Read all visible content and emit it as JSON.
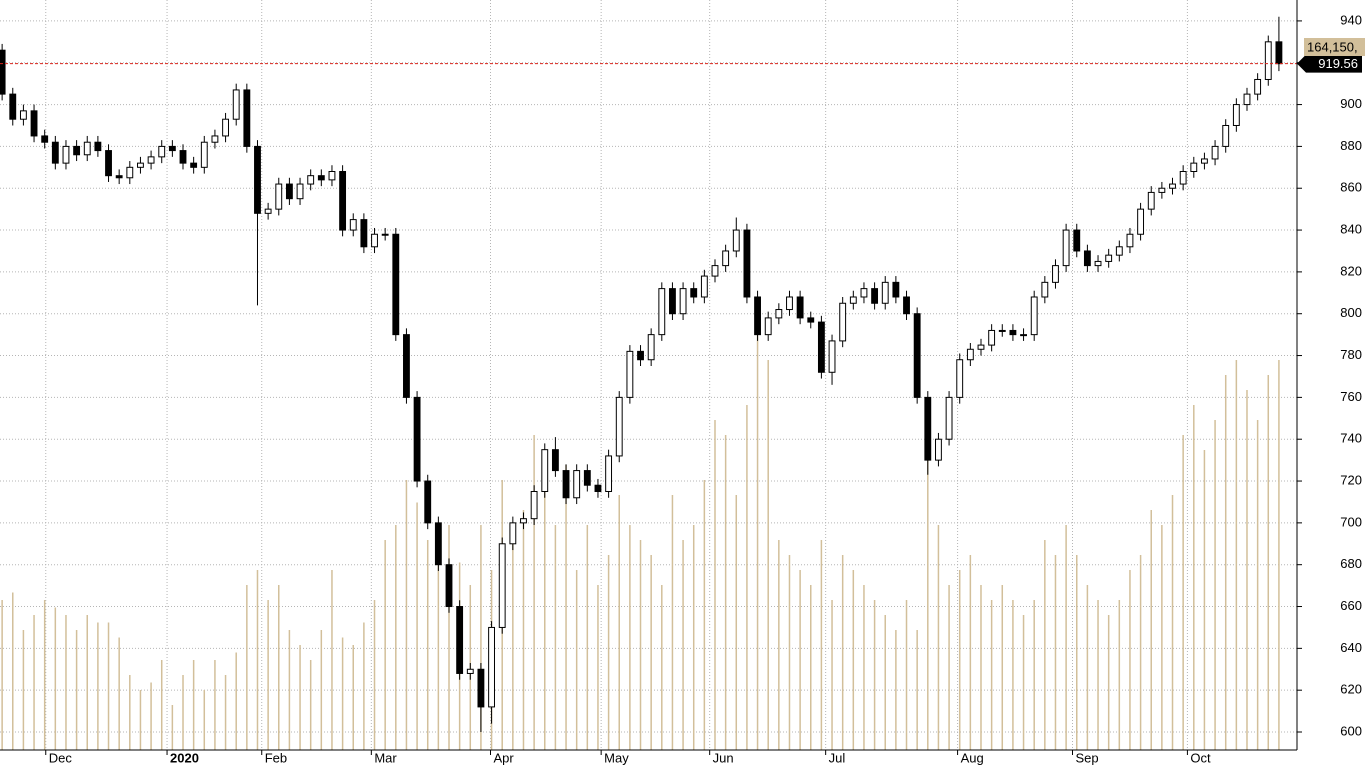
{
  "chart_data": {
    "type": "candlestick",
    "xlim": [
      -0.2,
      121.7
    ],
    "ylim": [
      591.4,
      950
    ],
    "y2lim": [
      0,
      100
    ],
    "yticks": [
      600,
      620,
      640,
      660,
      680,
      700,
      720,
      740,
      760,
      780,
      800,
      820,
      840,
      860,
      880,
      900,
      920,
      940
    ],
    "xticks": [
      {
        "value": 4.1,
        "label": "Dec"
      },
      {
        "value": 15.5,
        "label": "2020"
      },
      {
        "value": 24.4,
        "label": "Feb"
      },
      {
        "value": 34.7,
        "label": "Mar"
      },
      {
        "value": 45.9,
        "label": "Apr"
      },
      {
        "value": 56.3,
        "label": "May"
      },
      {
        "value": 66.5,
        "label": "Jun"
      },
      {
        "value": 77.4,
        "label": "Jul"
      },
      {
        "value": 89.8,
        "label": "Aug"
      },
      {
        "value": 100.6,
        "label": "Sep"
      },
      {
        "value": 111.4,
        "label": "Oct"
      }
    ],
    "grid": true,
    "up_color": "#ffffff",
    "down_color": "#000000",
    "volume_color": "#d2bf9a",
    "last_price": 919.56,
    "last_price_label": "919.56",
    "last_line_color": "#d9261c",
    "volume_label": "164,150,",
    "open": [
      926,
      905,
      893,
      897,
      885,
      882,
      872,
      880,
      876,
      882,
      878,
      866,
      865,
      870,
      872,
      875,
      880,
      878,
      872,
      870,
      882,
      885,
      893,
      907,
      880,
      848,
      850,
      862,
      855,
      862,
      866,
      864,
      868,
      840,
      845,
      832,
      838,
      838,
      790,
      760,
      720,
      700,
      680,
      660,
      628,
      630,
      612,
      650,
      690,
      700,
      702,
      715,
      735,
      725,
      712,
      725,
      718,
      715,
      732,
      760,
      782,
      778,
      790,
      812,
      800,
      812,
      808,
      818,
      823,
      830,
      840,
      808,
      790,
      798,
      802,
      808,
      798,
      796,
      772,
      787,
      805,
      808,
      812,
      805,
      815,
      808,
      800,
      760,
      730,
      740,
      760,
      778,
      783,
      785,
      792,
      792,
      790,
      790,
      808,
      815,
      823,
      840,
      830,
      823,
      825,
      828,
      832,
      838,
      850,
      858,
      860,
      862,
      868,
      872,
      874,
      880,
      890,
      900,
      905,
      912,
      930
    ],
    "high": [
      929,
      908,
      900,
      900,
      888,
      885,
      883,
      883,
      885,
      885,
      881,
      869,
      873,
      875,
      878,
      883,
      883,
      881,
      875,
      885,
      888,
      896,
      910,
      910,
      883,
      853,
      865,
      865,
      865,
      869,
      869,
      871,
      871,
      848,
      848,
      841,
      841,
      841,
      793,
      763,
      723,
      703,
      683,
      663,
      633,
      633,
      653,
      693,
      703,
      705,
      718,
      738,
      741,
      728,
      728,
      728,
      721,
      735,
      763,
      785,
      785,
      793,
      815,
      815,
      815,
      815,
      821,
      826,
      833,
      846,
      843,
      811,
      801,
      805,
      811,
      811,
      801,
      799,
      790,
      808,
      811,
      815,
      815,
      818,
      818,
      811,
      803,
      763,
      743,
      763,
      781,
      786,
      788,
      795,
      795,
      795,
      793,
      811,
      818,
      826,
      843,
      843,
      833,
      828,
      831,
      835,
      841,
      853,
      861,
      863,
      865,
      871,
      875,
      877,
      883,
      893,
      903,
      908,
      915,
      933,
      942
    ],
    "low": [
      902,
      890,
      890,
      882,
      879,
      869,
      869,
      873,
      873,
      875,
      863,
      862,
      862,
      867,
      869,
      872,
      875,
      869,
      867,
      867,
      879,
      882,
      890,
      877,
      804,
      845,
      847,
      852,
      852,
      859,
      861,
      861,
      837,
      837,
      829,
      829,
      835,
      787,
      757,
      717,
      697,
      677,
      657,
      625,
      625,
      600,
      604,
      647,
      687,
      697,
      699,
      712,
      722,
      709,
      709,
      715,
      712,
      712,
      729,
      757,
      775,
      775,
      787,
      797,
      797,
      805,
      805,
      815,
      820,
      827,
      805,
      787,
      787,
      795,
      799,
      795,
      793,
      769,
      766,
      784,
      802,
      805,
      802,
      802,
      805,
      797,
      757,
      723,
      727,
      737,
      757,
      775,
      780,
      782,
      789,
      787,
      787,
      787,
      805,
      812,
      820,
      827,
      820,
      820,
      822,
      825,
      829,
      835,
      847,
      855,
      857,
      859,
      865,
      869,
      871,
      877,
      887,
      897,
      902,
      909,
      916
    ],
    "close": [
      905,
      893,
      897,
      885,
      882,
      872,
      880,
      876,
      882,
      878,
      866,
      865,
      870,
      872,
      875,
      880,
      878,
      872,
      870,
      882,
      885,
      893,
      907,
      880,
      848,
      850,
      862,
      855,
      862,
      866,
      864,
      868,
      840,
      845,
      832,
      838,
      838,
      790,
      760,
      720,
      700,
      680,
      660,
      628,
      630,
      612,
      650,
      690,
      700,
      702,
      715,
      735,
      725,
      712,
      725,
      718,
      715,
      732,
      760,
      782,
      778,
      790,
      812,
      800,
      812,
      808,
      818,
      823,
      830,
      840,
      808,
      790,
      798,
      802,
      808,
      798,
      796,
      772,
      787,
      805,
      808,
      812,
      805,
      815,
      808,
      800,
      760,
      730,
      740,
      760,
      778,
      783,
      785,
      792,
      792,
      790,
      790,
      808,
      815,
      823,
      840,
      830,
      823,
      825,
      828,
      832,
      838,
      850,
      858,
      860,
      862,
      868,
      872,
      874,
      880,
      890,
      900,
      905,
      912,
      930,
      919.56
    ],
    "volume": [
      20,
      21,
      16,
      18,
      20,
      19,
      18,
      16,
      18,
      17,
      17,
      15,
      10,
      8,
      9,
      12,
      6,
      10,
      12,
      8,
      12,
      10,
      13,
      22,
      24,
      20,
      22,
      16,
      14,
      12,
      16,
      24,
      15,
      14,
      17,
      20,
      28,
      30,
      36,
      33,
      28,
      26,
      30,
      25,
      22,
      30,
      24,
      36,
      30,
      32,
      42,
      36,
      30,
      38,
      24,
      30,
      22,
      26,
      34,
      30,
      28,
      26,
      22,
      34,
      28,
      30,
      36,
      44,
      42,
      34,
      46,
      58,
      52,
      28,
      26,
      24,
      22,
      28,
      20,
      26,
      24,
      22,
      20,
      18,
      16,
      20,
      16,
      40,
      30,
      22,
      24,
      26,
      22,
      20,
      22,
      20,
      18,
      20,
      28,
      26,
      30,
      26,
      22,
      20,
      18,
      20,
      24,
      26,
      32,
      30,
      34,
      42,
      46,
      40,
      44,
      50,
      52,
      48,
      44,
      50,
      52
    ]
  }
}
